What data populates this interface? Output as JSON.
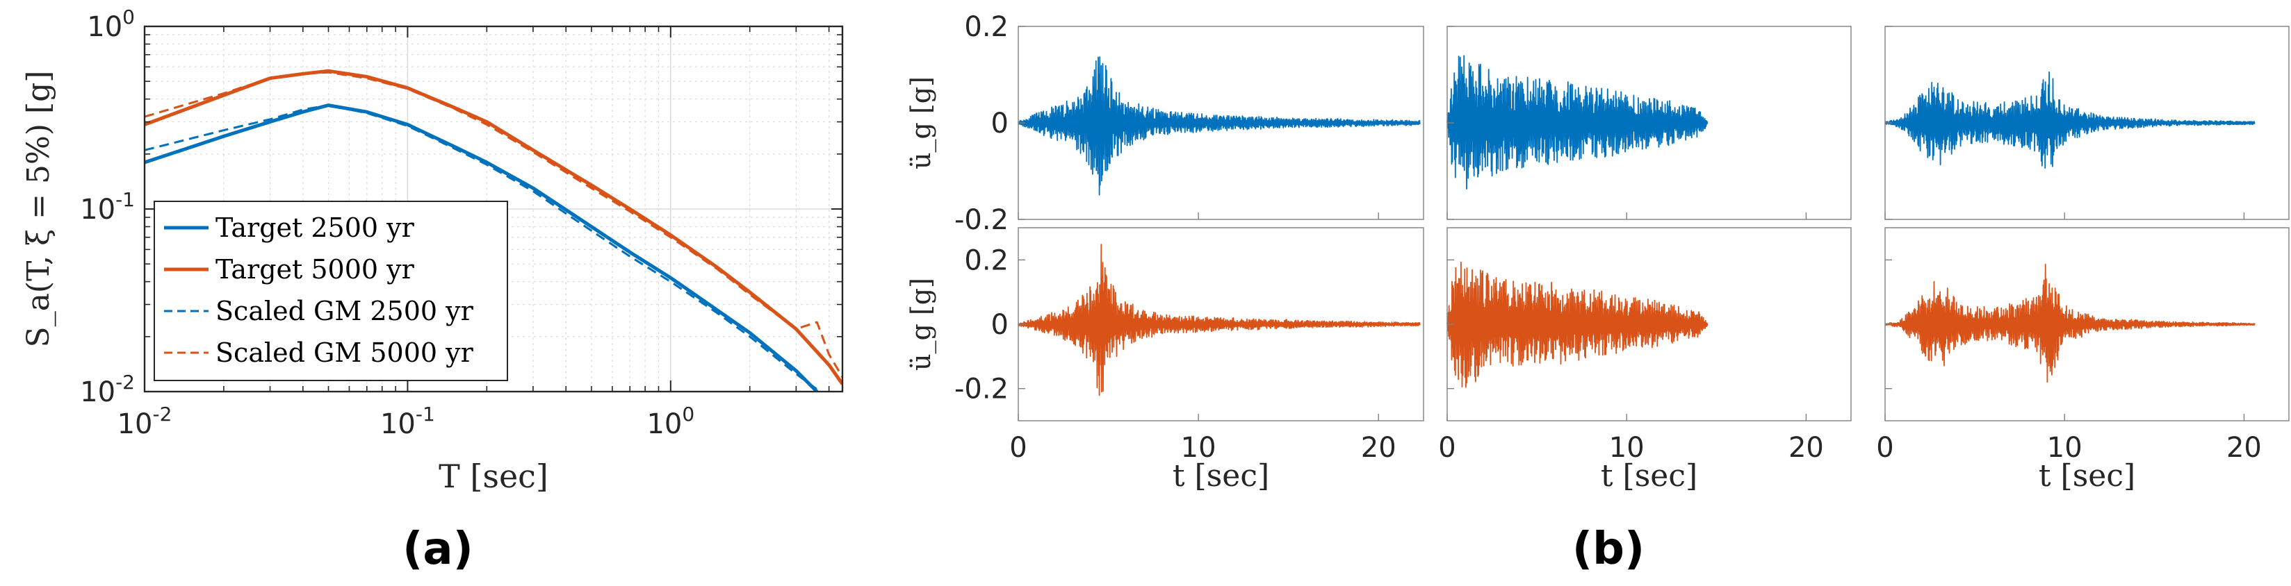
{
  "colors": {
    "blue": "#0072BD",
    "orange": "#D95319",
    "axis": "#262626",
    "grid": "#dcdcdc"
  },
  "panel_a": {
    "caption": "(a)",
    "ylabel": "S_a(T, ξ = 5%)  [g]",
    "xlabel": "T  [sec]"
  },
  "panel_b": {
    "caption": "(b)",
    "ylabel": "ü_g  [g]",
    "xlabel": "t  [sec]"
  },
  "chart_data": [
    {
      "type": "line",
      "xscale": "log",
      "yscale": "log",
      "xlim": [
        0.01,
        4.5
      ],
      "ylim": [
        0.01,
        1
      ],
      "grid": true,
      "legend_position": "bottom-left",
      "xticks": [
        {
          "v": 0.01,
          "base": "10",
          "exp": "-2"
        },
        {
          "v": 0.1,
          "base": "10",
          "exp": "-1"
        },
        {
          "v": 1,
          "base": "10",
          "exp": "0"
        }
      ],
      "yticks": [
        {
          "v": 0.01,
          "base": "10",
          "exp": "-2"
        },
        {
          "v": 0.1,
          "base": "10",
          "exp": "-1"
        },
        {
          "v": 1,
          "base": "10",
          "exp": "0"
        }
      ],
      "series": [
        {
          "name": "Target 2500 yr",
          "color": "#0072BD",
          "style": "solid",
          "x": [
            0.01,
            0.02,
            0.03,
            0.04,
            0.05,
            0.07,
            0.1,
            0.15,
            0.2,
            0.3,
            0.5,
            0.7,
            1.0,
            1.5,
            2.0,
            3.0,
            3.6
          ],
          "y": [
            0.18,
            0.25,
            0.3,
            0.34,
            0.37,
            0.34,
            0.29,
            0.22,
            0.18,
            0.13,
            0.08,
            0.058,
            0.042,
            0.028,
            0.021,
            0.013,
            0.01
          ]
        },
        {
          "name": "Target 5000 yr",
          "color": "#D95319",
          "style": "solid",
          "x": [
            0.01,
            0.02,
            0.03,
            0.04,
            0.05,
            0.07,
            0.1,
            0.15,
            0.2,
            0.3,
            0.5,
            0.7,
            1.0,
            1.5,
            2.0,
            3.0,
            4.0,
            4.5
          ],
          "y": [
            0.29,
            0.42,
            0.52,
            0.55,
            0.57,
            0.53,
            0.46,
            0.36,
            0.3,
            0.21,
            0.135,
            0.1,
            0.072,
            0.048,
            0.035,
            0.022,
            0.014,
            0.011
          ]
        },
        {
          "name": "Scaled GM 2500 yr",
          "color": "#0072BD",
          "style": "dashed",
          "x": [
            0.01,
            0.02,
            0.03,
            0.04,
            0.05,
            0.07,
            0.1,
            0.15,
            0.2,
            0.3,
            0.5,
            0.7,
            1.0,
            1.5,
            2.0,
            3.0,
            3.7
          ],
          "y": [
            0.21,
            0.27,
            0.31,
            0.35,
            0.37,
            0.335,
            0.285,
            0.215,
            0.175,
            0.125,
            0.076,
            0.055,
            0.04,
            0.027,
            0.02,
            0.0125,
            0.01
          ]
        },
        {
          "name": "Scaled GM 5000 yr",
          "color": "#D95319",
          "style": "dashed",
          "x": [
            0.01,
            0.02,
            0.03,
            0.04,
            0.05,
            0.07,
            0.1,
            0.15,
            0.2,
            0.3,
            0.5,
            0.7,
            1.0,
            1.5,
            2.0,
            3.0,
            3.6,
            4.0,
            4.5
          ],
          "y": [
            0.32,
            0.43,
            0.52,
            0.55,
            0.56,
            0.52,
            0.455,
            0.355,
            0.29,
            0.205,
            0.13,
            0.097,
            0.07,
            0.047,
            0.034,
            0.022,
            0.024,
            0.016,
            0.012
          ]
        }
      ]
    },
    {
      "type": "line",
      "description_key": "ground motion acceleration histories",
      "xticks": [
        0,
        10,
        20
      ],
      "xlim": [
        0,
        22.5
      ],
      "rows": [
        {
          "color": "#0072BD",
          "ylim": [
            -0.2,
            0.2
          ],
          "yticks": [
            {
              "v": 0.2,
              "label": "0.2"
            },
            {
              "v": 0,
              "label": "0"
            },
            {
              "v": -0.2,
              "label": "-0.2"
            }
          ],
          "records": [
            {
              "duration": 22.3,
              "envelope": [
                [
                  0,
                  0.004
                ],
                [
                  1,
                  0.02
                ],
                [
                  2,
                  0.035
                ],
                [
                  3,
                  0.05
                ],
                [
                  4,
                  0.09
                ],
                [
                  4.5,
                  0.17
                ],
                [
                  5,
                  0.1
                ],
                [
                  6,
                  0.05
                ],
                [
                  8,
                  0.025
                ],
                [
                  12,
                  0.015
                ],
                [
                  16,
                  0.01
                ],
                [
                  22.3,
                  0.005
                ]
              ],
              "seed": 11
            },
            {
              "duration": 14.5,
              "envelope": [
                [
                  0,
                  0.03
                ],
                [
                  0.5,
                  0.15
                ],
                [
                  1,
                  0.14
                ],
                [
                  3,
                  0.1
                ],
                [
                  6,
                  0.09
                ],
                [
                  9,
                  0.07
                ],
                [
                  12,
                  0.05
                ],
                [
                  14,
                  0.03
                ],
                [
                  14.5,
                  0.006
                ]
              ],
              "seed": 23
            },
            {
              "duration": 20.6,
              "envelope": [
                [
                  0,
                  0.002
                ],
                [
                  0.8,
                  0.01
                ],
                [
                  1.5,
                  0.04
                ],
                [
                  3,
                  0.1
                ],
                [
                  4,
                  0.05
                ],
                [
                  6,
                  0.04
                ],
                [
                  8.5,
                  0.06
                ],
                [
                  9,
                  0.12
                ],
                [
                  10,
                  0.04
                ],
                [
                  12,
                  0.015
                ],
                [
                  16,
                  0.006
                ],
                [
                  20.6,
                  0.003
                ]
              ],
              "seed": 37
            }
          ]
        },
        {
          "color": "#D95319",
          "ylim": [
            -0.3,
            0.3
          ],
          "yticks": [
            {
              "v": 0.2,
              "label": "0.2"
            },
            {
              "v": 0,
              "label": "0"
            },
            {
              "v": -0.2,
              "label": "-0.2"
            }
          ],
          "records": [
            {
              "duration": 22.3,
              "envelope": [
                [
                  0,
                  0.004
                ],
                [
                  1,
                  0.02
                ],
                [
                  2,
                  0.04
                ],
                [
                  3,
                  0.06
                ],
                [
                  4,
                  0.12
                ],
                [
                  4.6,
                  0.26
                ],
                [
                  5,
                  0.14
                ],
                [
                  6,
                  0.07
                ],
                [
                  8,
                  0.03
                ],
                [
                  12,
                  0.02
                ],
                [
                  16,
                  0.012
                ],
                [
                  22.3,
                  0.005
                ]
              ],
              "seed": 53
            },
            {
              "duration": 14.5,
              "envelope": [
                [
                  0,
                  0.03
                ],
                [
                  0.5,
                  0.22
                ],
                [
                  1,
                  0.2
                ],
                [
                  3,
                  0.14
                ],
                [
                  6,
                  0.13
                ],
                [
                  9,
                  0.1
                ],
                [
                  12,
                  0.07
                ],
                [
                  14,
                  0.04
                ],
                [
                  14.5,
                  0.006
                ]
              ],
              "seed": 71
            },
            {
              "duration": 20.6,
              "envelope": [
                [
                  0,
                  0.002
                ],
                [
                  0.8,
                  0.01
                ],
                [
                  1.5,
                  0.05
                ],
                [
                  3,
                  0.16
                ],
                [
                  4,
                  0.07
                ],
                [
                  6,
                  0.05
                ],
                [
                  8.5,
                  0.09
                ],
                [
                  9,
                  0.22
                ],
                [
                  10,
                  0.06
                ],
                [
                  12,
                  0.02
                ],
                [
                  16,
                  0.008
                ],
                [
                  20.6,
                  0.003
                ]
              ],
              "seed": 89
            }
          ]
        }
      ]
    }
  ]
}
